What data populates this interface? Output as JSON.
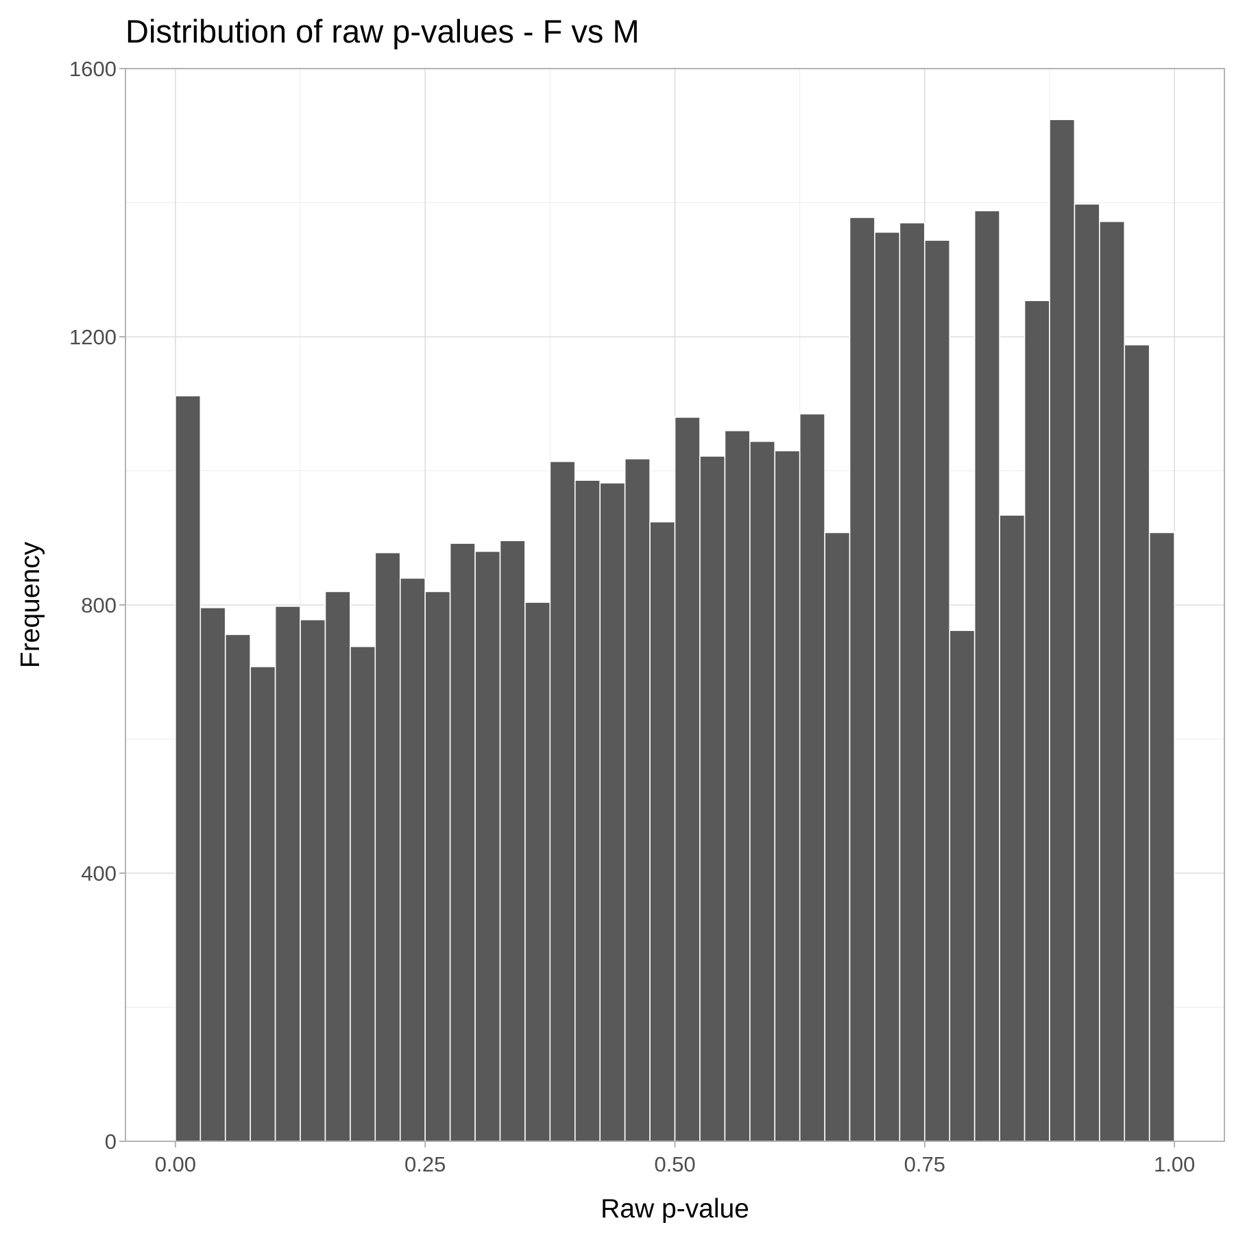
{
  "chart_data": {
    "type": "bar",
    "title": "Distribution of raw p-values - F vs M",
    "xlabel": "Raw p-value",
    "ylabel": "Frequency",
    "xlim": [
      -0.05,
      1.05
    ],
    "ylim": [
      0,
      1600
    ],
    "x_ticks": [
      0.0,
      0.25,
      0.5,
      0.75,
      1.0
    ],
    "x_tick_labels": [
      "0.00",
      "0.25",
      "0.50",
      "0.75",
      "1.00"
    ],
    "y_ticks": [
      0,
      400,
      800,
      1200,
      1600
    ],
    "y_tick_labels": [
      "0",
      "400",
      "800",
      "1200",
      "1600"
    ],
    "grid": true,
    "bar_color": "#595959",
    "bin_width": 0.025,
    "x": [
      0.0125,
      0.0375,
      0.0625,
      0.0875,
      0.1125,
      0.1375,
      0.1625,
      0.1875,
      0.2125,
      0.2375,
      0.2625,
      0.2875,
      0.3125,
      0.3375,
      0.3625,
      0.3875,
      0.4125,
      0.4375,
      0.4625,
      0.4875,
      0.5125,
      0.5375,
      0.5625,
      0.5875,
      0.6125,
      0.6375,
      0.6625,
      0.6875,
      0.7125,
      0.7375,
      0.7625,
      0.7875,
      0.8125,
      0.8375,
      0.8625,
      0.8875,
      0.9125,
      0.9375,
      0.9625,
      0.9875
    ],
    "values": [
      1112,
      796,
      756,
      708,
      798,
      778,
      820,
      738,
      878,
      840,
      820,
      892,
      880,
      896,
      804,
      1014,
      986,
      982,
      1018,
      924,
      1080,
      1022,
      1060,
      1044,
      1030,
      1085,
      908,
      1378,
      1356,
      1370,
      1344,
      762,
      1388,
      934,
      1254,
      1524,
      1398,
      1372,
      1188,
      908
    ]
  }
}
